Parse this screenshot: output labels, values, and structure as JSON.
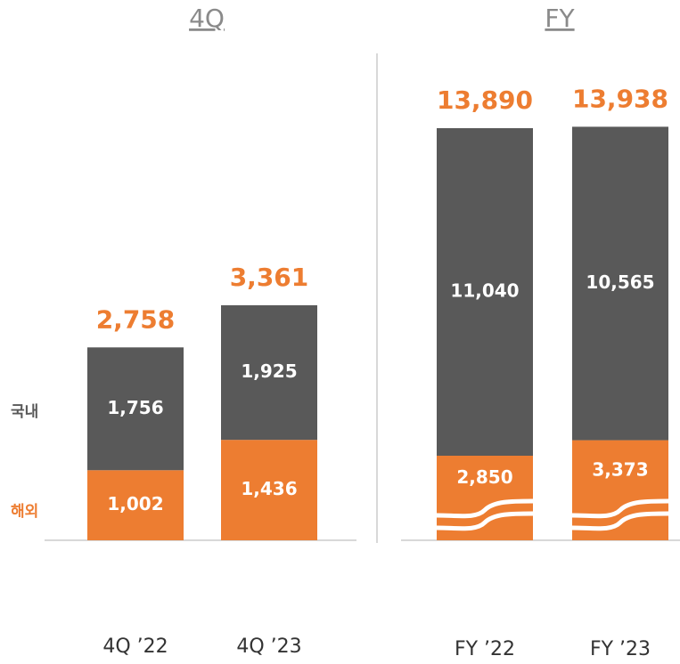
{
  "chart_data": [
    {
      "type": "stacked_bar",
      "title": "4Q",
      "categories": [
        "4Q ’22",
        "4Q ’23"
      ],
      "series": [
        {
          "name": "해외",
          "color": "#ED7D31",
          "values": [
            1002,
            1436
          ],
          "value_labels": [
            "1,002",
            "1,436"
          ]
        },
        {
          "name": "국내",
          "color": "#595959",
          "values": [
            1756,
            1925
          ],
          "value_labels": [
            "1,756",
            "1,925"
          ]
        }
      ],
      "totals": [
        2758,
        3361
      ],
      "total_labels": [
        "2,758",
        "3,361"
      ],
      "ylim": [
        0,
        7000
      ]
    },
    {
      "type": "stacked_bar",
      "title": "FY",
      "categories": [
        "FY ’22",
        "FY ’23"
      ],
      "series": [
        {
          "name": "해외",
          "color": "#ED7D31",
          "values": [
            2850,
            3373
          ],
          "value_labels": [
            "2,850",
            "3,373"
          ]
        },
        {
          "name": "국내",
          "color": "#595959",
          "values": [
            11040,
            10565
          ],
          "value_labels": [
            "11,040",
            "10,565"
          ]
        }
      ],
      "totals": [
        13890,
        13938
      ],
      "total_labels": [
        "13,890",
        "13,938"
      ],
      "ylim": [
        0,
        16500
      ],
      "axis_break": true
    }
  ]
}
